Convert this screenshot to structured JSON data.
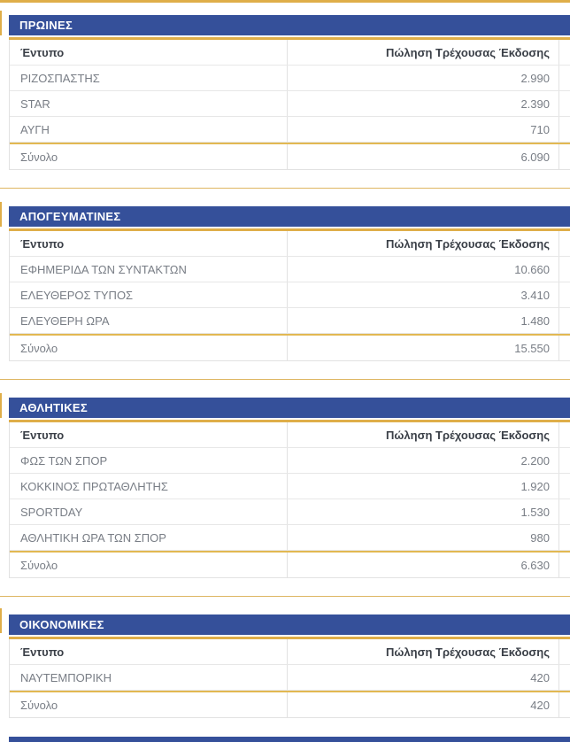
{
  "columns": {
    "publication": "Έντυπο",
    "sales": "Πώληση Τρέχουσας Έκδοσης"
  },
  "total_label": "Σύνολο",
  "sections": [
    {
      "title": "ΠΡΩΙΝΕΣ",
      "rows": [
        {
          "name": "ΡΙΖΟΣΠΑΣΤΗΣ",
          "value": "2.990"
        },
        {
          "name": "STAR",
          "value": "2.390"
        },
        {
          "name": "ΑΥΓΗ",
          "value": "710"
        }
      ],
      "total": "6.090"
    },
    {
      "title": "ΑΠΟΓΕΥΜΑΤΙΝΕΣ",
      "rows": [
        {
          "name": "ΕΦΗΜΕΡΙΔΑ ΤΩΝ ΣΥΝΤΑΚΤΩΝ",
          "value": "10.660"
        },
        {
          "name": "ΕΛΕΥΘΕΡΟΣ ΤΥΠΟΣ",
          "value": "3.410"
        },
        {
          "name": "ΕΛΕΥΘΕΡΗ ΩΡΑ",
          "value": "1.480"
        }
      ],
      "total": "15.550"
    },
    {
      "title": "ΑΘΛΗΤΙΚΕΣ",
      "rows": [
        {
          "name": "ΦΩΣ ΤΩΝ ΣΠΟΡ",
          "value": "2.200"
        },
        {
          "name": "ΚΟΚΚΙΝΟΣ ΠΡΩΤΑΘΛΗΤΗΣ",
          "value": "1.920"
        },
        {
          "name": "SPORTDAY",
          "value": "1.530"
        },
        {
          "name": "ΑΘΛΗΤΙΚΗ ΩΡΑ ΤΩΝ ΣΠΟΡ",
          "value": "980"
        }
      ],
      "total": "6.630"
    },
    {
      "title": "ΟΙΚΟΝΟΜΙΚΕΣ",
      "rows": [
        {
          "name": "ΝΑΥΤΕΜΠΟΡΙΚΗ",
          "value": "420"
        }
      ],
      "total": "420"
    }
  ],
  "colors": {
    "header_blue": "#35509a",
    "accent_gold": "#dfae49",
    "header_text": "#ffffff",
    "cell_text": "#787d85"
  }
}
